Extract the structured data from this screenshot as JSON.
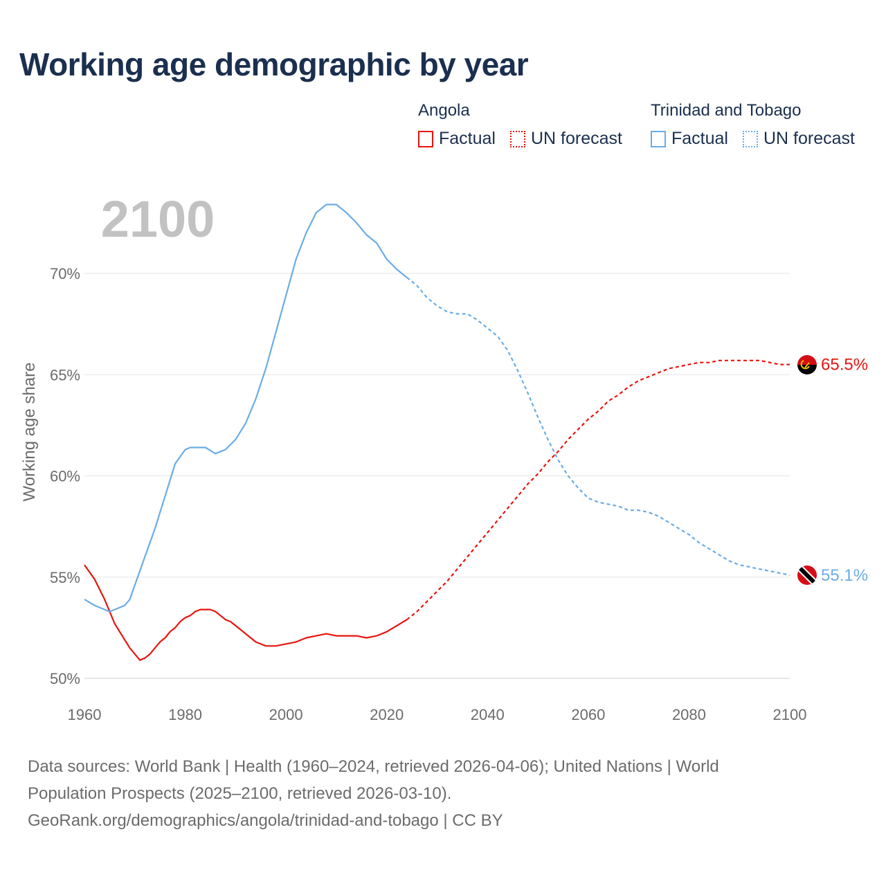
{
  "title": "Working age demographic by year",
  "legend": {
    "groups": [
      {
        "name": "Angola",
        "factual_label": "Factual",
        "forecast_label": "UN forecast"
      },
      {
        "name": "Trinidad and Tobago",
        "factual_label": "Factual",
        "forecast_label": "UN forecast"
      }
    ]
  },
  "source": {
    "line1": "Data sources: World Bank | Health (1960–2024, retrieved 2026-04-06); United Nations | World",
    "line2": "Population Prospects (2025–2100, retrieved 2026-03-10).",
    "line3": "GeoRank.org/demographics/angola/trinidad-and-tobago | CC BY"
  },
  "colors": {
    "angola": "#e8140e",
    "trinidad": "#6aace6",
    "title": "#1b2f4f",
    "year_watermark": "#c2c2c2"
  },
  "chart_data": {
    "type": "line",
    "year_watermark": "2100",
    "ylabel": "Working age share",
    "xlabel": "",
    "xlim": [
      1960,
      2100
    ],
    "ylim": [
      50,
      72
    ],
    "x_ticks": [
      "1960",
      "1980",
      "2000",
      "2020",
      "2040",
      "2060",
      "2080",
      "2100"
    ],
    "y_ticks": [
      {
        "value": 50,
        "label": "50%"
      },
      {
        "value": 55,
        "label": "55%"
      },
      {
        "value": 60,
        "label": "60%"
      },
      {
        "value": 65,
        "label": "65%"
      },
      {
        "value": 70,
        "label": "70%"
      }
    ],
    "factual_end_year": 2024,
    "series": [
      {
        "name": "Angola",
        "color_key": "angola",
        "end_label": "65.5%",
        "flag": "angola-flag-icon",
        "points": [
          [
            1960,
            55.6
          ],
          [
            1962,
            54.9
          ],
          [
            1964,
            53.9
          ],
          [
            1966,
            52.7
          ],
          [
            1968,
            51.9
          ],
          [
            1969,
            51.5
          ],
          [
            1970,
            51.2
          ],
          [
            1971,
            50.9
          ],
          [
            1972,
            51.0
          ],
          [
            1973,
            51.2
          ],
          [
            1974,
            51.5
          ],
          [
            1975,
            51.8
          ],
          [
            1976,
            52.0
          ],
          [
            1977,
            52.3
          ],
          [
            1978,
            52.5
          ],
          [
            1979,
            52.8
          ],
          [
            1980,
            53.0
          ],
          [
            1981,
            53.1
          ],
          [
            1982,
            53.3
          ],
          [
            1983,
            53.4
          ],
          [
            1984,
            53.4
          ],
          [
            1985,
            53.4
          ],
          [
            1986,
            53.3
          ],
          [
            1987,
            53.1
          ],
          [
            1988,
            52.9
          ],
          [
            1989,
            52.8
          ],
          [
            1990,
            52.6
          ],
          [
            1992,
            52.2
          ],
          [
            1994,
            51.8
          ],
          [
            1996,
            51.6
          ],
          [
            1998,
            51.6
          ],
          [
            2000,
            51.7
          ],
          [
            2002,
            51.8
          ],
          [
            2004,
            52.0
          ],
          [
            2006,
            52.1
          ],
          [
            2008,
            52.2
          ],
          [
            2010,
            52.1
          ],
          [
            2012,
            52.1
          ],
          [
            2014,
            52.1
          ],
          [
            2016,
            52.0
          ],
          [
            2018,
            52.1
          ],
          [
            2020,
            52.3
          ],
          [
            2022,
            52.6
          ],
          [
            2024,
            52.9
          ],
          [
            2026,
            53.3
          ],
          [
            2028,
            53.8
          ],
          [
            2030,
            54.3
          ],
          [
            2032,
            54.8
          ],
          [
            2034,
            55.4
          ],
          [
            2036,
            56.0
          ],
          [
            2038,
            56.6
          ],
          [
            2040,
            57.2
          ],
          [
            2042,
            57.8
          ],
          [
            2044,
            58.4
          ],
          [
            2046,
            59.0
          ],
          [
            2048,
            59.6
          ],
          [
            2050,
            60.1
          ],
          [
            2052,
            60.7
          ],
          [
            2054,
            61.2
          ],
          [
            2056,
            61.8
          ],
          [
            2058,
            62.3
          ],
          [
            2060,
            62.8
          ],
          [
            2062,
            63.2
          ],
          [
            2064,
            63.7
          ],
          [
            2066,
            64.0
          ],
          [
            2068,
            64.4
          ],
          [
            2070,
            64.7
          ],
          [
            2072,
            64.9
          ],
          [
            2074,
            65.1
          ],
          [
            2076,
            65.3
          ],
          [
            2078,
            65.4
          ],
          [
            2080,
            65.5
          ],
          [
            2082,
            65.6
          ],
          [
            2084,
            65.6
          ],
          [
            2086,
            65.7
          ],
          [
            2088,
            65.7
          ],
          [
            2090,
            65.7
          ],
          [
            2092,
            65.7
          ],
          [
            2094,
            65.7
          ],
          [
            2096,
            65.6
          ],
          [
            2098,
            65.5
          ],
          [
            2100,
            65.5
          ]
        ]
      },
      {
        "name": "Trinidad and Tobago",
        "color_key": "trinidad",
        "end_label": "55.1%",
        "flag": "trinidad-flag-icon",
        "points": [
          [
            1960,
            53.9
          ],
          [
            1962,
            53.6
          ],
          [
            1964,
            53.4
          ],
          [
            1965,
            53.3
          ],
          [
            1966,
            53.4
          ],
          [
            1968,
            53.6
          ],
          [
            1969,
            53.9
          ],
          [
            1970,
            54.6
          ],
          [
            1972,
            56.0
          ],
          [
            1974,
            57.4
          ],
          [
            1976,
            59.0
          ],
          [
            1978,
            60.6
          ],
          [
            1980,
            61.3
          ],
          [
            1981,
            61.4
          ],
          [
            1982,
            61.4
          ],
          [
            1984,
            61.4
          ],
          [
            1986,
            61.1
          ],
          [
            1988,
            61.3
          ],
          [
            1990,
            61.8
          ],
          [
            1992,
            62.6
          ],
          [
            1994,
            63.8
          ],
          [
            1996,
            65.3
          ],
          [
            1998,
            67.1
          ],
          [
            2000,
            68.9
          ],
          [
            2002,
            70.7
          ],
          [
            2004,
            72.0
          ],
          [
            2006,
            73.0
          ],
          [
            2008,
            73.4
          ],
          [
            2010,
            73.4
          ],
          [
            2012,
            73.0
          ],
          [
            2014,
            72.5
          ],
          [
            2016,
            71.9
          ],
          [
            2018,
            71.5
          ],
          [
            2020,
            70.7
          ],
          [
            2022,
            70.2
          ],
          [
            2024,
            69.8
          ],
          [
            2026,
            69.4
          ],
          [
            2028,
            68.8
          ],
          [
            2030,
            68.4
          ],
          [
            2032,
            68.1
          ],
          [
            2034,
            68.0
          ],
          [
            2036,
            68.0
          ],
          [
            2038,
            67.7
          ],
          [
            2040,
            67.3
          ],
          [
            2042,
            66.9
          ],
          [
            2044,
            66.2
          ],
          [
            2046,
            65.2
          ],
          [
            2048,
            64.1
          ],
          [
            2050,
            62.9
          ],
          [
            2052,
            61.8
          ],
          [
            2054,
            60.8
          ],
          [
            2056,
            60.0
          ],
          [
            2058,
            59.4
          ],
          [
            2060,
            58.9
          ],
          [
            2062,
            58.7
          ],
          [
            2064,
            58.6
          ],
          [
            2066,
            58.5
          ],
          [
            2068,
            58.3
          ],
          [
            2070,
            58.3
          ],
          [
            2072,
            58.2
          ],
          [
            2074,
            58.0
          ],
          [
            2076,
            57.7
          ],
          [
            2078,
            57.4
          ],
          [
            2080,
            57.1
          ],
          [
            2082,
            56.7
          ],
          [
            2084,
            56.4
          ],
          [
            2086,
            56.1
          ],
          [
            2088,
            55.8
          ],
          [
            2090,
            55.6
          ],
          [
            2092,
            55.5
          ],
          [
            2094,
            55.4
          ],
          [
            2096,
            55.3
          ],
          [
            2098,
            55.2
          ],
          [
            2100,
            55.1
          ]
        ]
      }
    ]
  }
}
